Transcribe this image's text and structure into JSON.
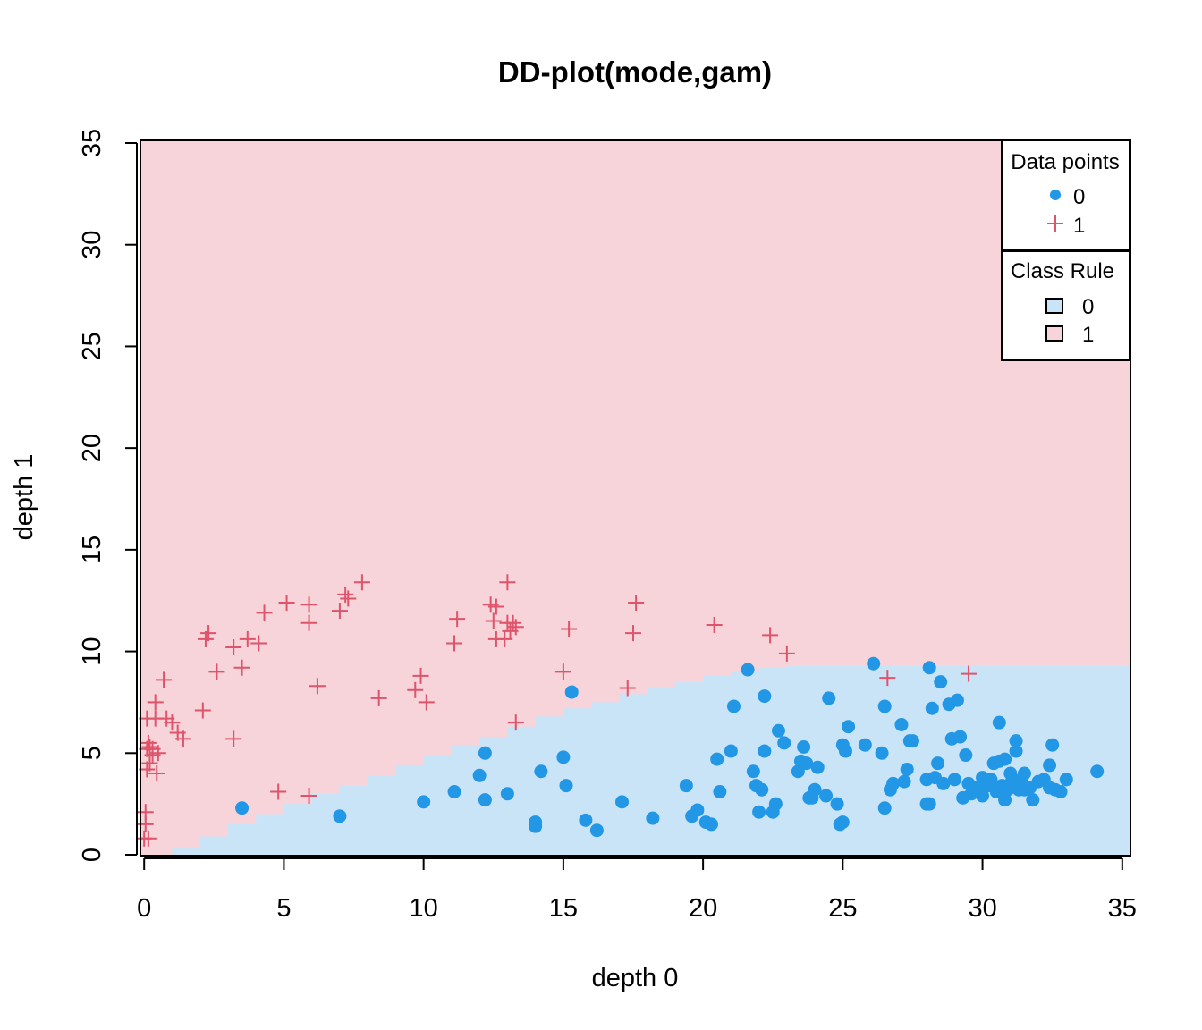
{
  "chart_data": {
    "type": "scatter",
    "title": "DD-plot(mode,gam)",
    "xlabel": "depth 0",
    "ylabel": "depth 1",
    "xlim": [
      0,
      35
    ],
    "ylim": [
      0,
      35
    ],
    "xticks": [
      0,
      5,
      10,
      15,
      20,
      25,
      30,
      35
    ],
    "yticks": [
      0,
      5,
      10,
      15,
      20,
      25,
      30,
      35
    ],
    "grid": false,
    "colors": {
      "class0_point": "#2297E6",
      "class1_point": "#DF536B",
      "class0_region": "#C9E4F7",
      "class1_region": "#F6D4DA"
    },
    "class_boundary": {
      "x": [
        0,
        1,
        2,
        3,
        4,
        5,
        6,
        7,
        8,
        9,
        10,
        11,
        12,
        13,
        14,
        15,
        16,
        17,
        18,
        19,
        20,
        21,
        22,
        23,
        35
      ],
      "y": [
        0.0,
        0.3,
        0.9,
        1.5,
        2.0,
        2.5,
        3.0,
        3.4,
        3.9,
        4.4,
        4.9,
        5.4,
        5.8,
        6.3,
        6.8,
        7.2,
        7.5,
        7.9,
        8.2,
        8.5,
        8.8,
        9.0,
        9.2,
        9.3,
        9.3
      ]
    },
    "legend": [
      {
        "title": "Data points",
        "position": "top-right",
        "entries": [
          {
            "label": "0",
            "marker": "dot",
            "color": "#2297E6"
          },
          {
            "label": "1",
            "marker": "plus",
            "color": "#DF536B"
          }
        ]
      },
      {
        "title": "Class Rule",
        "position": "right",
        "entries": [
          {
            "label": "0",
            "marker": "box",
            "color": "#C9E4F7"
          },
          {
            "label": "1",
            "marker": "box",
            "color": "#F6D4DA"
          }
        ]
      }
    ],
    "series": [
      {
        "name": "0",
        "marker": "dot",
        "points": [
          [
            3.5,
            2.3
          ],
          [
            7.0,
            1.9
          ],
          [
            10.0,
            2.6
          ],
          [
            11.1,
            3.1
          ],
          [
            12.0,
            3.9
          ],
          [
            12.2,
            2.7
          ],
          [
            12.2,
            5.0
          ],
          [
            13.0,
            3.0
          ],
          [
            14.0,
            1.4
          ],
          [
            14.0,
            1.6
          ],
          [
            14.2,
            4.1
          ],
          [
            15.0,
            4.8
          ],
          [
            15.1,
            3.4
          ],
          [
            15.3,
            8.0
          ],
          [
            15.8,
            1.7
          ],
          [
            16.2,
            1.2
          ],
          [
            17.1,
            2.6
          ],
          [
            18.2,
            1.8
          ],
          [
            19.4,
            3.4
          ],
          [
            19.6,
            1.9
          ],
          [
            19.8,
            2.2
          ],
          [
            20.1,
            1.6
          ],
          [
            20.3,
            1.5
          ],
          [
            20.5,
            4.7
          ],
          [
            20.6,
            3.1
          ],
          [
            21.0,
            5.1
          ],
          [
            21.1,
            7.3
          ],
          [
            21.6,
            9.1
          ],
          [
            21.8,
            4.1
          ],
          [
            21.9,
            3.4
          ],
          [
            22.0,
            2.1
          ],
          [
            22.1,
            3.2
          ],
          [
            22.2,
            5.1
          ],
          [
            22.2,
            7.8
          ],
          [
            22.5,
            2.1
          ],
          [
            22.6,
            2.5
          ],
          [
            22.7,
            6.1
          ],
          [
            22.9,
            5.5
          ],
          [
            23.4,
            4.1
          ],
          [
            23.5,
            4.6
          ],
          [
            23.6,
            5.3
          ],
          [
            23.7,
            4.5
          ],
          [
            23.8,
            2.8
          ],
          [
            23.9,
            2.8
          ],
          [
            24.0,
            3.2
          ],
          [
            24.1,
            4.3
          ],
          [
            24.4,
            2.9
          ],
          [
            24.5,
            7.7
          ],
          [
            24.8,
            2.5
          ],
          [
            24.9,
            1.5
          ],
          [
            25.0,
            1.6
          ],
          [
            25.0,
            5.4
          ],
          [
            25.1,
            5.1
          ],
          [
            25.2,
            6.3
          ],
          [
            25.8,
            5.4
          ],
          [
            26.1,
            9.4
          ],
          [
            26.4,
            5.0
          ],
          [
            26.5,
            2.3
          ],
          [
            26.5,
            7.3
          ],
          [
            26.7,
            3.2
          ],
          [
            26.8,
            3.5
          ],
          [
            27.1,
            6.4
          ],
          [
            27.2,
            3.6
          ],
          [
            27.3,
            4.2
          ],
          [
            27.4,
            5.6
          ],
          [
            27.5,
            5.6
          ],
          [
            28.0,
            2.5
          ],
          [
            28.0,
            3.7
          ],
          [
            28.1,
            2.5
          ],
          [
            28.1,
            9.2
          ],
          [
            28.2,
            7.2
          ],
          [
            28.3,
            3.8
          ],
          [
            28.4,
            4.5
          ],
          [
            28.5,
            8.5
          ],
          [
            28.6,
            3.5
          ],
          [
            28.8,
            7.4
          ],
          [
            28.9,
            5.7
          ],
          [
            29.0,
            3.7
          ],
          [
            29.1,
            7.6
          ],
          [
            29.2,
            5.8
          ],
          [
            29.3,
            2.8
          ],
          [
            29.4,
            4.9
          ],
          [
            29.5,
            3.5
          ],
          [
            29.6,
            3.0
          ],
          [
            29.7,
            3.3
          ],
          [
            29.8,
            3.1
          ],
          [
            30.0,
            3.5
          ],
          [
            30.0,
            3.8
          ],
          [
            30.0,
            2.9
          ],
          [
            30.2,
            3.4
          ],
          [
            30.3,
            3.7
          ],
          [
            30.4,
            4.5
          ],
          [
            30.5,
            3.1
          ],
          [
            30.6,
            4.6
          ],
          [
            30.6,
            6.5
          ],
          [
            30.7,
            3.4
          ],
          [
            30.8,
            4.7
          ],
          [
            30.8,
            2.7
          ],
          [
            30.9,
            3.2
          ],
          [
            31.0,
            3.5
          ],
          [
            31.0,
            4.0
          ],
          [
            31.2,
            5.6
          ],
          [
            31.2,
            5.1
          ],
          [
            31.3,
            3.2
          ],
          [
            31.4,
            3.7
          ],
          [
            31.5,
            3.2
          ],
          [
            31.5,
            4.0
          ],
          [
            31.7,
            3.3
          ],
          [
            31.8,
            2.7
          ],
          [
            32.0,
            3.6
          ],
          [
            32.2,
            3.7
          ],
          [
            32.4,
            3.3
          ],
          [
            32.4,
            4.4
          ],
          [
            32.5,
            5.4
          ],
          [
            32.6,
            3.2
          ],
          [
            32.8,
            3.1
          ],
          [
            33.0,
            3.7
          ],
          [
            34.1,
            4.1
          ]
        ]
      },
      {
        "name": "1",
        "marker": "plus",
        "points": [
          [
            0.0,
            0.8
          ],
          [
            0.05,
            2.1
          ],
          [
            0.05,
            1.5
          ],
          [
            0.1,
            4.2
          ],
          [
            0.1,
            5.2
          ],
          [
            0.1,
            6.7
          ],
          [
            0.15,
            5.5
          ],
          [
            0.15,
            0.8
          ],
          [
            0.2,
            5.3
          ],
          [
            0.2,
            4.5
          ],
          [
            0.3,
            4.9
          ],
          [
            0.3,
            5.2
          ],
          [
            0.4,
            7.5
          ],
          [
            0.4,
            6.7
          ],
          [
            0.45,
            4.0
          ],
          [
            0.5,
            5.0
          ],
          [
            0.7,
            8.6
          ],
          [
            0.8,
            6.7
          ],
          [
            1.0,
            6.5
          ],
          [
            1.2,
            6.0
          ],
          [
            1.4,
            5.7
          ],
          [
            2.1,
            7.1
          ],
          [
            2.2,
            10.6
          ],
          [
            2.3,
            10.9
          ],
          [
            2.6,
            9.0
          ],
          [
            3.2,
            10.2
          ],
          [
            3.2,
            5.7
          ],
          [
            3.5,
            9.2
          ],
          [
            3.7,
            10.6
          ],
          [
            4.1,
            10.4
          ],
          [
            4.3,
            11.9
          ],
          [
            4.8,
            3.1
          ],
          [
            5.1,
            12.4
          ],
          [
            5.9,
            11.4
          ],
          [
            5.9,
            12.3
          ],
          [
            5.9,
            2.9
          ],
          [
            6.2,
            8.3
          ],
          [
            7.0,
            12.0
          ],
          [
            7.2,
            12.8
          ],
          [
            7.3,
            12.6
          ],
          [
            7.8,
            13.4
          ],
          [
            8.4,
            7.7
          ],
          [
            9.7,
            8.1
          ],
          [
            9.9,
            8.8
          ],
          [
            10.1,
            7.5
          ],
          [
            11.1,
            10.4
          ],
          [
            11.2,
            11.6
          ],
          [
            12.4,
            12.3
          ],
          [
            12.5,
            11.5
          ],
          [
            12.6,
            10.6
          ],
          [
            12.6,
            12.2
          ],
          [
            12.9,
            10.6
          ],
          [
            13.0,
            13.4
          ],
          [
            13.0,
            11.4
          ],
          [
            13.1,
            11.0
          ],
          [
            13.2,
            11.4
          ],
          [
            13.3,
            11.2
          ],
          [
            13.3,
            6.5
          ],
          [
            15.0,
            9.0
          ],
          [
            15.2,
            11.1
          ],
          [
            17.3,
            8.2
          ],
          [
            17.5,
            10.9
          ],
          [
            17.6,
            12.4
          ],
          [
            20.4,
            11.3
          ],
          [
            22.4,
            10.8
          ],
          [
            23.0,
            9.9
          ],
          [
            26.6,
            8.7
          ],
          [
            29.5,
            8.9
          ]
        ]
      }
    ]
  }
}
